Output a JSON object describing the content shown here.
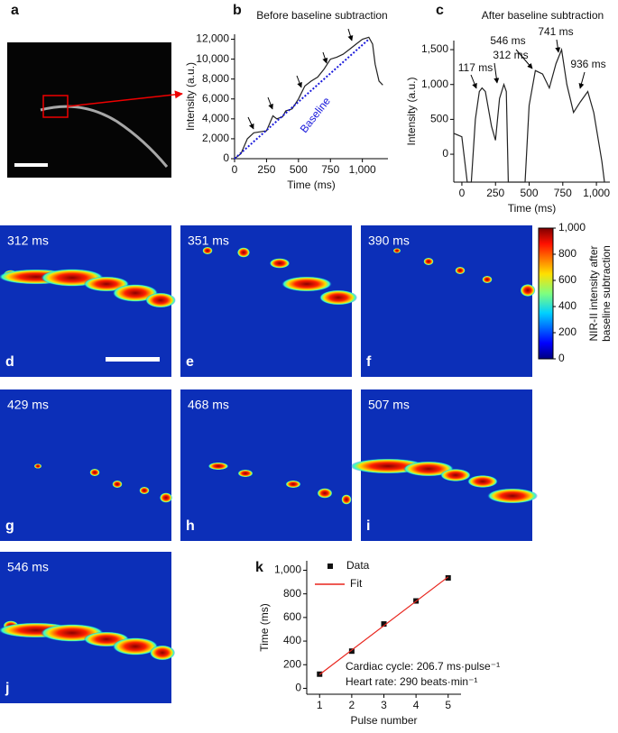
{
  "figure_panels": {
    "a": "a",
    "images": [
      {
        "label": "d",
        "time": "312 ms"
      },
      {
        "label": "e",
        "time": "351 ms"
      },
      {
        "label": "f",
        "time": "390 ms"
      },
      {
        "label": "g",
        "time": "429 ms"
      },
      {
        "label": "h",
        "time": "468 ms"
      },
      {
        "label": "i",
        "time": "507 ms"
      },
      {
        "label": "j",
        "time": "546 ms"
      }
    ]
  },
  "chart_data": [
    {
      "type": "line",
      "panel": "b",
      "title": "Before baseline subtraction",
      "xlabel": "Time (ms)",
      "ylabel": "Intensity (a.u.)",
      "xlim": [
        0,
        1200
      ],
      "xticks": [
        0,
        250,
        500,
        750,
        {
          "value": 1000,
          "label": "1,000"
        }
      ],
      "ylim": [
        0,
        12500
      ],
      "yticks": [
        0,
        {
          "value": 2000,
          "label": "2,000"
        },
        {
          "value": 4000,
          "label": "4,000"
        },
        {
          "value": 6000,
          "label": "6,000"
        },
        {
          "value": 8000,
          "label": "8,000"
        },
        {
          "value": 10000,
          "label": "10,000"
        },
        {
          "value": 12000,
          "label": "12,000"
        }
      ],
      "series": [
        {
          "name": null,
          "color": "#222222",
          "line_style": "solid",
          "x": [
            0,
            50,
            100,
            150,
            200,
            250,
            300,
            330,
            375,
            400,
            450,
            500,
            550,
            600,
            650,
            700,
            750,
            800,
            850,
            900,
            950,
            1000,
            1050,
            1080,
            1100,
            1130,
            1160
          ],
          "values": [
            0,
            500,
            2000,
            2600,
            2700,
            2800,
            4300,
            4000,
            4200,
            4800,
            5000,
            6000,
            7300,
            7800,
            8200,
            9000,
            10000,
            10200,
            10500,
            11000,
            11500,
            12000,
            12200,
            11500,
            9500,
            7800,
            7400
          ]
        },
        {
          "name": "Baseline",
          "color": "#1a1adb",
          "line_style": "dotted",
          "x": [
            0,
            1050
          ],
          "values": [
            0,
            12000
          ]
        }
      ]
    },
    {
      "type": "line",
      "panel": "c",
      "title": "After baseline subtraction",
      "xlabel": "Time (ms)",
      "ylabel": "Intensity (a.u.)",
      "xlim": [
        -60,
        1100
      ],
      "xticks": [
        0,
        250,
        500,
        750,
        {
          "value": 1000,
          "label": "1,000"
        }
      ],
      "ylim": [
        -400,
        1630
      ],
      "yticks": [
        0,
        500,
        {
          "value": 1000,
          "label": "1,000"
        },
        {
          "value": 1500,
          "label": "1,500"
        }
      ],
      "annotations": [
        "117 ms",
        "312 ms",
        "546 ms",
        "741 ms",
        "936 ms"
      ],
      "series": [
        {
          "name": null,
          "color": "#222222",
          "line_style": "solid",
          "x": [
            -60,
            0,
            40,
            70,
            100,
            130,
            150,
            175,
            220,
            250,
            280,
            312,
            330,
            345,
            470,
            500,
            546,
            600,
            650,
            700,
            741,
            780,
            830,
            880,
            936,
            980,
            1040,
            1060
          ],
          "values": [
            300,
            250,
            -400,
            -400,
            500,
            900,
            950,
            900,
            400,
            200,
            800,
            1000,
            900,
            -400,
            -400,
            700,
            1200,
            1150,
            950,
            1300,
            1500,
            1000,
            600,
            750,
            900,
            600,
            -100,
            -400
          ]
        }
      ]
    },
    {
      "type": "scatter",
      "panel": "k",
      "xlabel": "Pulse number",
      "ylabel": "Time (ms)",
      "xlim": [
        0.6,
        5.4
      ],
      "xticks": [
        1,
        2,
        3,
        4,
        5
      ],
      "ylim": [
        -50,
        1080
      ],
      "yticks": [
        0,
        200,
        400,
        600,
        800,
        {
          "value": 1000,
          "label": "1,000"
        }
      ],
      "notes": [
        "Cardiac cycle: 206.7 ms·pulse⁻¹",
        "Heart rate: 290 beats·min⁻¹"
      ],
      "series": [
        {
          "name": "Data",
          "color": "#111111",
          "style": "markers",
          "x": [
            1,
            2,
            3,
            4,
            5
          ],
          "values": [
            120,
            315,
            545,
            740,
            935
          ]
        },
        {
          "name": "Fit",
          "color": "#e8241c",
          "style": "line",
          "x": [
            1,
            5
          ],
          "values": [
            117,
            944
          ]
        }
      ]
    },
    {
      "type": "colorbar",
      "ylabel_lines": [
        "NIR-II intensity after",
        "baseline subtraction"
      ],
      "ylim": [
        0,
        1000
      ],
      "yticks": [
        0,
        200,
        400,
        600,
        800,
        {
          "value": 1000,
          "label": "1,000"
        }
      ]
    }
  ]
}
